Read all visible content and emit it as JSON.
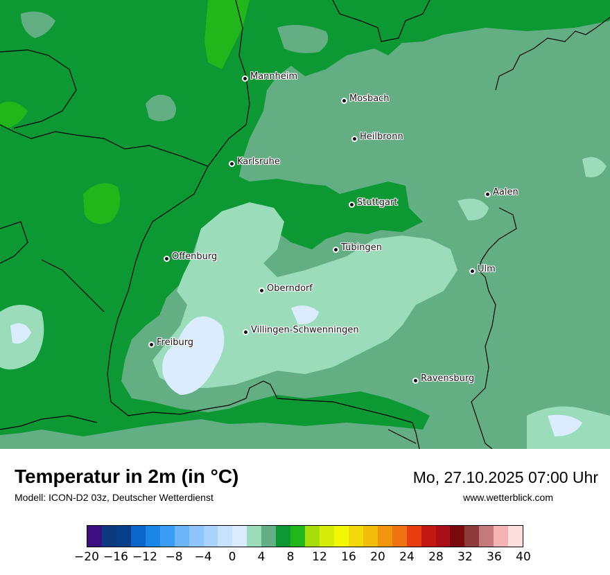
{
  "map": {
    "cities": [
      {
        "key": "mannheim",
        "name": "Mannheim"
      },
      {
        "key": "mosbach",
        "name": "Mosbach"
      },
      {
        "key": "heilbronn",
        "name": "Heilbronn"
      },
      {
        "key": "karlsruhe",
        "name": "Karlsruhe"
      },
      {
        "key": "aalen",
        "name": "Aalen"
      },
      {
        "key": "stuttgart",
        "name": "Stuttgart"
      },
      {
        "key": "tuebingen",
        "name": "Tübingen"
      },
      {
        "key": "offenburg",
        "name": "Offenburg"
      },
      {
        "key": "ulm",
        "name": "Ulm"
      },
      {
        "key": "oberndorf",
        "name": "Oberndorf"
      },
      {
        "key": "villingen",
        "name": "Villingen-Schwenningen"
      },
      {
        "key": "freiburg",
        "name": "Freiburg"
      },
      {
        "key": "ravensburg",
        "name": "Ravensburg"
      }
    ]
  },
  "header": {
    "title": "Temperatur in 2m (in °C)",
    "model": "Modell: ICON-D2 03z, Deutscher Wetterdienst",
    "datetime": "Mo, 27.10.2025 07:00 Uhr",
    "site": "www.wetterblick.com"
  },
  "legend": {
    "tick_labels": [
      "−20",
      "−16",
      "−12",
      "−8",
      "−4",
      "0",
      "4",
      "8",
      "12",
      "16",
      "20",
      "24",
      "28",
      "32",
      "36",
      "40"
    ],
    "colors": [
      "#3b0f80",
      "#0c3a7e",
      "#053f87",
      "#0a66c8",
      "#1a86e8",
      "#3a9cf5",
      "#6db6fa",
      "#8ec6fb",
      "#a9d3fc",
      "#c6e2fd",
      "#dbecfe",
      "#9bdcbb",
      "#64ae84",
      "#0c9934",
      "#21b61a",
      "#a6dc0b",
      "#d5ec09",
      "#f3f700",
      "#f2d907",
      "#f1bd0a",
      "#f1950c",
      "#ef7411",
      "#e73d10",
      "#c11812",
      "#a80f17",
      "#7a0b0c",
      "#8c3a3a",
      "#c47a7b",
      "#f5b4b4",
      "#ffdede"
    ]
  },
  "colors": {
    "warm_green": "#0c9934",
    "mid_green": "#64ae84",
    "light_green": "#9bdcbb",
    "pale_blue": "#dbecfe",
    "bright_green": "#21b61a"
  }
}
